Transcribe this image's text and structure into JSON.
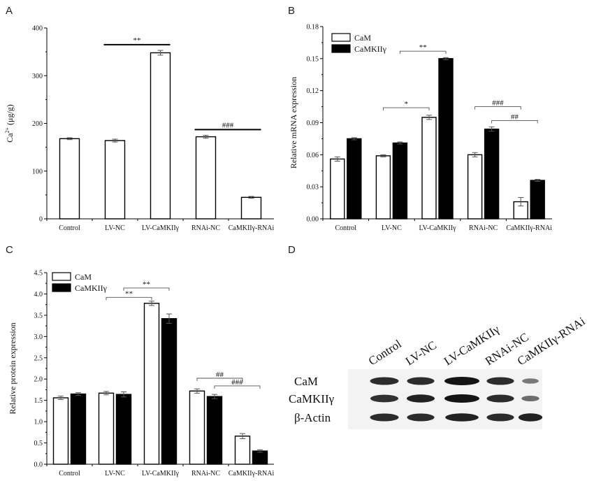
{
  "chart_data": [
    {
      "panel": "A",
      "type": "bar",
      "ylabel": "Ca2+ (μg/g)",
      "ylabel_main": "Ca",
      "ylabel_sup": "2+",
      "ylabel_rest": " (μg/g)",
      "ylim": [
        0,
        400
      ],
      "yticks": [
        "0",
        "100",
        "200",
        "300",
        "400"
      ],
      "categories": [
        "Control",
        "LV-NC",
        "LV-CaMKIIγ",
        "RNAi-NC",
        "CaMKIIγ-RNAi"
      ],
      "series": [
        {
          "values": [
            168,
            164,
            348,
            172,
            45
          ],
          "errors": [
            2,
            3,
            5,
            3,
            2
          ],
          "fill": "#ffffff"
        }
      ],
      "annotations": [
        {
          "text": "**",
          "from": 1,
          "to": 2,
          "y": 365,
          "style": "bar"
        },
        {
          "text": "###",
          "from": 3,
          "to": 4,
          "y": 187,
          "style": "bar"
        }
      ]
    },
    {
      "panel": "B",
      "type": "bar",
      "ylabel": "Relative mRNA expression",
      "ylim": [
        0,
        0.18
      ],
      "yticks": [
        "0.00",
        "0.03",
        "0.06",
        "0.09",
        "0.12",
        "0.15",
        "0.18"
      ],
      "categories": [
        "Control",
        "LV-NC",
        "LV-CaMKIIγ",
        "RNAi-NC",
        "CaMKIIγ-RNAi"
      ],
      "legend": [
        "CaM",
        "CaMKIIγ"
      ],
      "series": [
        {
          "name": "CaM",
          "values": [
            0.056,
            0.059,
            0.095,
            0.06,
            0.016
          ],
          "errors": [
            0.002,
            0.001,
            0.002,
            0.002,
            0.004
          ],
          "fill": "#ffffff"
        },
        {
          "name": "CaMKIIγ",
          "values": [
            0.075,
            0.071,
            0.15,
            0.084,
            0.036
          ],
          "errors": [
            0.001,
            0.001,
            0.001,
            0.002,
            0.001
          ],
          "fill": "#000000"
        }
      ],
      "annotations": [
        {
          "text": "*",
          "x1": [
            1,
            0
          ],
          "x2": [
            2,
            0
          ],
          "y": 0.104,
          "style": "bracket"
        },
        {
          "text": "**",
          "x1": [
            1,
            1
          ],
          "x2": [
            2,
            1
          ],
          "y": 0.157,
          "style": "bracket"
        },
        {
          "text": "###",
          "x1": [
            3,
            0
          ],
          "x2": [
            4,
            0
          ],
          "y": 0.105,
          "style": "bracket"
        },
        {
          "text": "##",
          "x1": [
            3,
            1
          ],
          "x2": [
            4,
            1
          ],
          "y": 0.092,
          "style": "bracket"
        }
      ]
    },
    {
      "panel": "C",
      "type": "bar",
      "ylabel": "Relative protein expression",
      "ylim": [
        0,
        4.5
      ],
      "yticks": [
        "0.0",
        "0.5",
        "1.0",
        "1.5",
        "2.0",
        "2.5",
        "3.0",
        "3.5",
        "4.0",
        "4.5"
      ],
      "categories": [
        "Control",
        "LV-NC",
        "LV-CaMKIIγ",
        "RNAi-NC",
        "CaMKIIγ-RNAi"
      ],
      "legend": [
        "CaM",
        "CaMKIIγ"
      ],
      "series": [
        {
          "name": "CaM",
          "values": [
            1.56,
            1.67,
            3.78,
            1.72,
            0.66
          ],
          "errors": [
            0.04,
            0.04,
            0.05,
            0.05,
            0.06
          ],
          "fill": "#ffffff"
        },
        {
          "name": "CaMKIIγ",
          "values": [
            1.65,
            1.64,
            3.42,
            1.59,
            0.31
          ],
          "errors": [
            0.03,
            0.06,
            0.11,
            0.05,
            0.03
          ],
          "fill": "#000000"
        }
      ],
      "annotations": [
        {
          "text": "**",
          "x1": [
            1,
            0
          ],
          "x2": [
            2,
            0
          ],
          "y": 3.92,
          "style": "bracket"
        },
        {
          "text": "**",
          "x1": [
            1,
            1
          ],
          "x2": [
            2,
            1
          ],
          "y": 4.14,
          "style": "bracket"
        },
        {
          "text": "##",
          "x1": [
            3,
            0
          ],
          "x2": [
            4,
            0
          ],
          "y": 2.02,
          "style": "bracket"
        },
        {
          "text": "###",
          "x1": [
            3,
            1
          ],
          "x2": [
            4,
            1
          ],
          "y": 1.84,
          "style": "bracket"
        }
      ]
    }
  ],
  "panel_labels": [
    "A",
    "B",
    "C",
    "D"
  ],
  "blot": {
    "lanes": [
      "Control",
      "LV-NC",
      "LV-CaMKIIγ",
      "RNAi-NC",
      "CaMKIIγ-RNAi"
    ],
    "rows": [
      "CaM",
      "CaMKIIγ",
      "β-Actin"
    ],
    "intensity": [
      [
        0.85,
        0.85,
        1.0,
        0.85,
        0.25
      ],
      [
        0.8,
        0.9,
        1.0,
        0.85,
        0.35
      ],
      [
        0.85,
        0.85,
        0.9,
        0.85,
        0.9
      ]
    ]
  }
}
